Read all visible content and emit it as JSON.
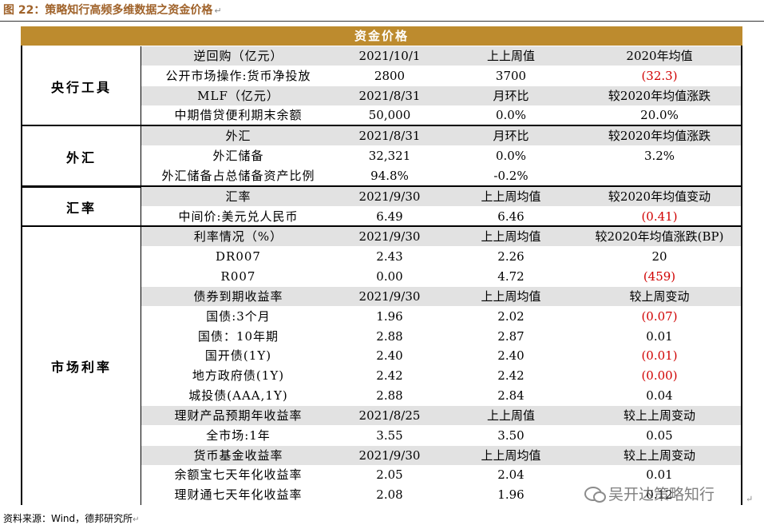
{
  "title": "图 22：策略知行高频多维数据之资金价格",
  "banner": "资金价格",
  "sections": [
    {
      "label": "央行工具",
      "rows": [
        {
          "hdr": true,
          "cells": [
            "逆回购（亿元）",
            "2021/10/1",
            "上上周值",
            "2020年均值"
          ]
        },
        {
          "hdr": false,
          "cells": [
            "公开市场操作:货币净投放",
            "2800",
            "3700",
            "(32.3)"
          ],
          "neg": [
            false,
            false,
            false,
            true
          ]
        },
        {
          "hdr": true,
          "cells": [
            "MLF（亿元）",
            "2021/8/31",
            "月环比",
            "较2020年均值涨跌"
          ]
        },
        {
          "hdr": false,
          "cells": [
            "中期借贷便利期末余额",
            "50,000",
            "0.0%",
            "20.0%"
          ],
          "neg": [
            false,
            false,
            false,
            false
          ]
        }
      ]
    },
    {
      "label": "外汇",
      "rows": [
        {
          "hdr": true,
          "cells": [
            "外汇",
            "2021/8/31",
            "月环比",
            "较2020年均值涨跌"
          ]
        },
        {
          "hdr": false,
          "cells": [
            "外汇储备",
            "32,321",
            "0.0%",
            "3.2%"
          ],
          "neg": [
            false,
            false,
            false,
            false
          ]
        },
        {
          "hdr": false,
          "cells": [
            "外汇储备占总储备资产比例",
            "94.8%",
            "-0.2%",
            ""
          ],
          "neg": [
            false,
            false,
            false,
            false
          ]
        }
      ]
    },
    {
      "label": "汇率",
      "rows": [
        {
          "hdr": true,
          "cells": [
            "汇率",
            "2021/9/30",
            "上上周均值",
            "较2020年均值变动"
          ]
        },
        {
          "hdr": false,
          "cells": [
            "中间价:美元兑人民币",
            "6.49",
            "6.46",
            "(0.41)"
          ],
          "neg": [
            false,
            false,
            false,
            true
          ]
        }
      ]
    },
    {
      "label": "市场利率",
      "rows": [
        {
          "hdr": true,
          "cells": [
            "利率情况（%）",
            "2021/9/30",
            "上上周均值",
            "较2020年均值涨跌(BP)"
          ]
        },
        {
          "hdr": false,
          "cells": [
            "DR007",
            "2.43",
            "2.26",
            "20"
          ],
          "neg": [
            false,
            false,
            false,
            false
          ]
        },
        {
          "hdr": false,
          "cells": [
            "R007",
            "0.00",
            "4.72",
            "(459)"
          ],
          "neg": [
            false,
            false,
            false,
            true
          ]
        },
        {
          "hdr": true,
          "cells": [
            "债券到期收益率",
            "2021/9/30",
            "上上周均值",
            "较上周变动"
          ]
        },
        {
          "hdr": false,
          "cells": [
            "国债:3个月",
            "1.96",
            "2.02",
            "(0.07)"
          ],
          "neg": [
            false,
            false,
            false,
            true
          ]
        },
        {
          "hdr": false,
          "cells": [
            "国债：10年期",
            "2.88",
            "2.87",
            "0.01"
          ],
          "neg": [
            false,
            false,
            false,
            false
          ]
        },
        {
          "hdr": false,
          "cells": [
            "国开债(1Y)",
            "2.40",
            "2.40",
            "(0.01)"
          ],
          "neg": [
            false,
            false,
            false,
            true
          ]
        },
        {
          "hdr": false,
          "cells": [
            "地方政府债(1Y)",
            "2.42",
            "2.42",
            "(0.00)"
          ],
          "neg": [
            false,
            false,
            false,
            true
          ]
        },
        {
          "hdr": false,
          "cells": [
            "城投债(AAA,1Y)",
            "2.88",
            "2.84",
            "0.04"
          ],
          "neg": [
            false,
            false,
            false,
            false
          ]
        },
        {
          "hdr": true,
          "cells": [
            "理财产品预期年收益率",
            "2021/8/25",
            "上上周值",
            "较上上周变动"
          ]
        },
        {
          "hdr": false,
          "cells": [
            "全市场:1年",
            "3.55",
            "3.50",
            "0.05"
          ],
          "neg": [
            false,
            false,
            false,
            false
          ]
        },
        {
          "hdr": true,
          "cells": [
            "货币基金收益率",
            "2021/9/30",
            "上上周均值",
            "较上上周变动"
          ]
        },
        {
          "hdr": false,
          "cells": [
            "余额宝七天年化收益率",
            "2.05",
            "2.04",
            "0.01"
          ],
          "neg": [
            false,
            false,
            false,
            false
          ]
        },
        {
          "hdr": false,
          "cells": [
            "理财通七天年化收益率",
            "2.08",
            "1.96",
            "0.12"
          ],
          "neg": [
            false,
            false,
            false,
            false
          ]
        }
      ]
    }
  ],
  "footer": "资料来源：Wind，德邦研究所",
  "watermark": "吴开达策略知行",
  "colors": {
    "banner": "#bd8b2e",
    "title": "#a0632b",
    "negative": "#d00000",
    "header_row": "#e2e2e2"
  }
}
